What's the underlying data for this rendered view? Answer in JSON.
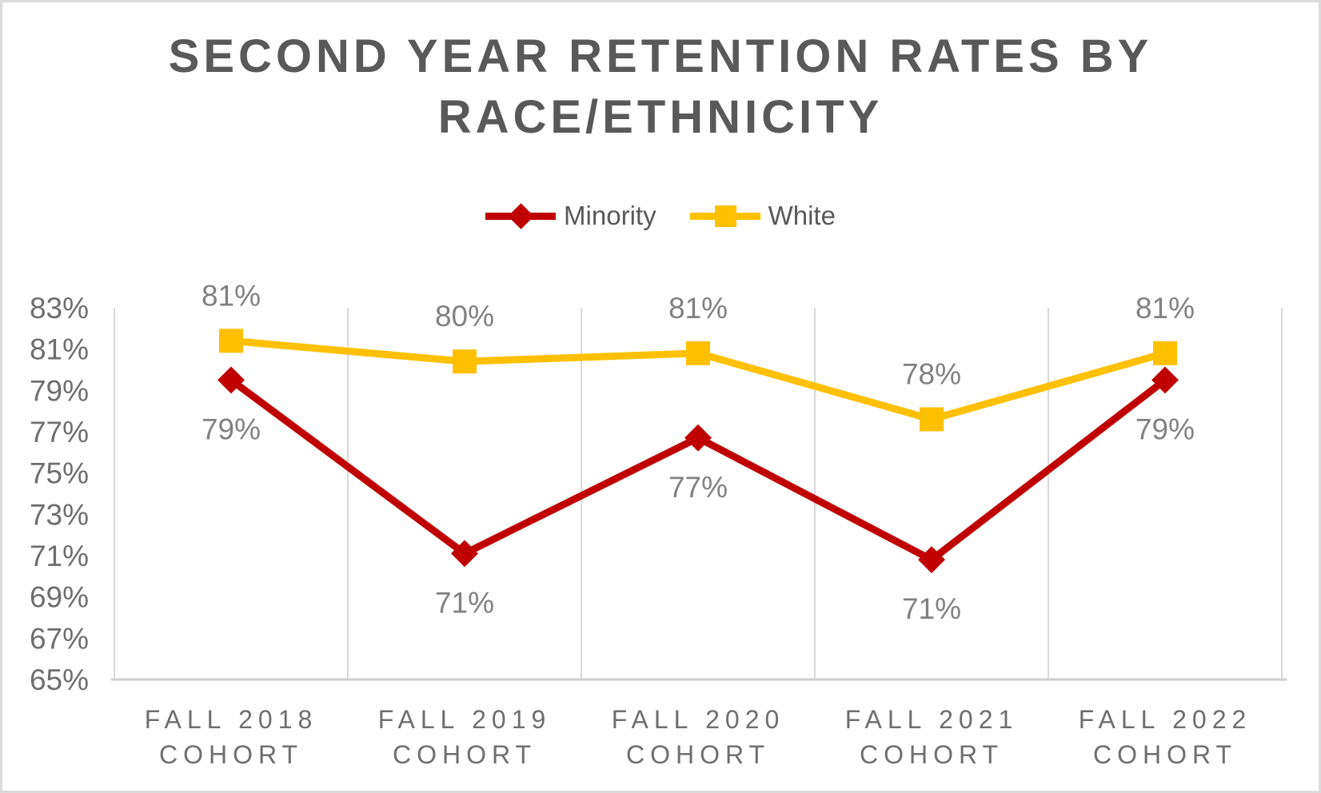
{
  "chart_data": {
    "type": "line",
    "title": "SECOND YEAR RETENTION RATES BY RACE/ETHNICITY",
    "title_lines": [
      "SECOND YEAR RETENTION RATES BY",
      "RACE/ETHNICITY"
    ],
    "categories": [
      [
        "FALL 2018",
        "COHORT"
      ],
      [
        "FALL 2019",
        "COHORT"
      ],
      [
        "FALL 2020",
        "COHORT"
      ],
      [
        "FALL 2021",
        "COHORT"
      ],
      [
        "FALL 2022",
        "COHORT"
      ]
    ],
    "series": [
      {
        "name": "Minority",
        "color": "#C00000",
        "marker": "diamond",
        "values": [
          79,
          71,
          77,
          71,
          79
        ],
        "labels": [
          "79%",
          "71%",
          "77%",
          "71%",
          "79%"
        ],
        "plot_values": [
          79.5,
          71.1,
          76.7,
          70.8,
          79.5
        ],
        "label_position": "below"
      },
      {
        "name": "White",
        "color": "#FFC000",
        "marker": "square",
        "values": [
          81,
          80,
          81,
          78,
          81
        ],
        "labels": [
          "81%",
          "80%",
          "81%",
          "78%",
          "81%"
        ],
        "plot_values": [
          81.4,
          80.4,
          80.8,
          77.6,
          80.8
        ],
        "label_position": "above"
      }
    ],
    "y_axis": {
      "min": 65,
      "max": 83,
      "step": 2,
      "tick_labels": [
        "83%",
        "81%",
        "79%",
        "77%",
        "75%",
        "73%",
        "71%",
        "69%",
        "67%",
        "65%"
      ]
    },
    "x_axis": {
      "label": ""
    },
    "grid": "vertical",
    "legend_position": "top"
  },
  "style_colors": {
    "title": "#595959",
    "axis_tick_text": "#6e6e6e",
    "data_label_text": "#818181",
    "gridline": "#d9d9d9",
    "axis_line": "#cecece"
  }
}
